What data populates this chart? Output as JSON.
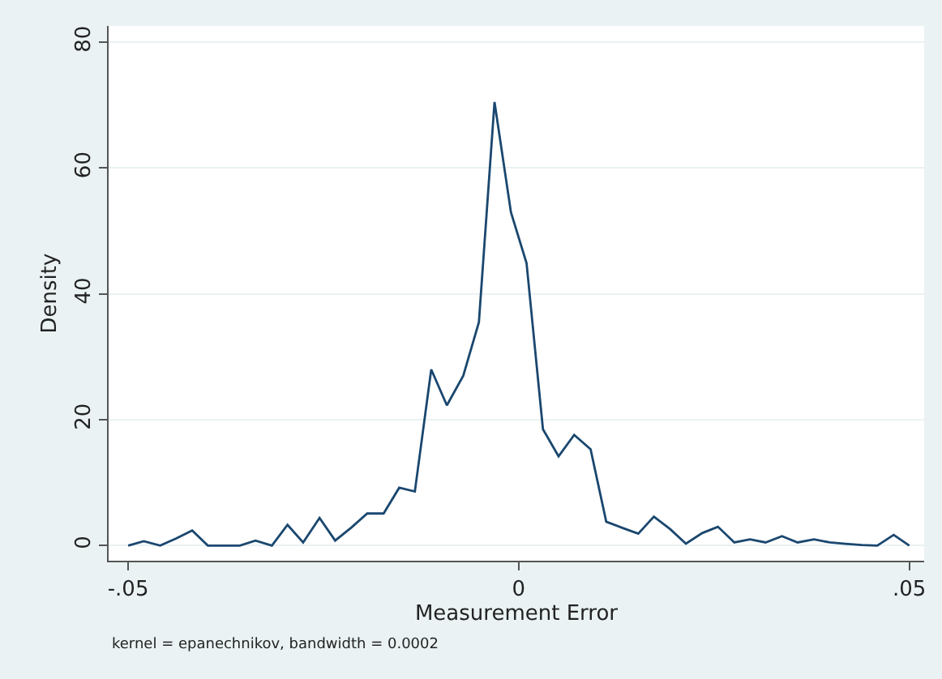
{
  "chart_data": {
    "type": "line",
    "xlabel": "Measurement Error",
    "ylabel": "Density",
    "annotations": [
      "kernel = epanechnikov, bandwidth = 0.0002"
    ],
    "x": [
      -0.05,
      -0.048,
      -0.0459,
      -0.0439,
      -0.0418,
      -0.0398,
      -0.0378,
      -0.0357,
      -0.0337,
      -0.0316,
      -0.0296,
      -0.0276,
      -0.0255,
      -0.0235,
      -0.0214,
      -0.0194,
      -0.0173,
      -0.0153,
      -0.0133,
      -0.0112,
      -0.0092,
      -0.0071,
      -0.0051,
      -0.0031,
      -0.001,
      0.001,
      0.0031,
      0.0051,
      0.0071,
      0.0092,
      0.0112,
      0.0133,
      0.0153,
      0.0173,
      0.0194,
      0.0214,
      0.0235,
      0.0255,
      0.0276,
      0.0296,
      0.0316,
      0.0337,
      0.0357,
      0.0378,
      0.0398,
      0.0418,
      0.0439,
      0.0459,
      0.048,
      0.05
    ],
    "series": [
      {
        "color": "#1a476f",
        "values": [
          0,
          0.7,
          0,
          1.1,
          2.4,
          0,
          0,
          0,
          0.8,
          0,
          3.3,
          0.5,
          4.4,
          0.8,
          2.9,
          5.1,
          5.1,
          9.2,
          8.6,
          28.0,
          22.3,
          27.0,
          35.5,
          70.5,
          53.0,
          44.9,
          18.5,
          14.2,
          17.6,
          15.3,
          3.8,
          2.8,
          1.9,
          4.6,
          2.6,
          0.3,
          2.0,
          3.0,
          0.5,
          1.0,
          0.5,
          1.5,
          0.5,
          1.0,
          0.5,
          0.3,
          0.1,
          0,
          1.7,
          0
        ]
      }
    ],
    "xlim": [
      -0.0525,
      0.0519
    ],
    "xticks": [
      {
        "value": -0.05,
        "label": "-.05"
      },
      0,
      {
        "value": 0.05,
        "label": ".05"
      }
    ],
    "ylim": [
      -2.4,
      82.6
    ],
    "yticks": [
      0,
      20,
      40,
      60,
      80
    ],
    "grid": "y"
  }
}
